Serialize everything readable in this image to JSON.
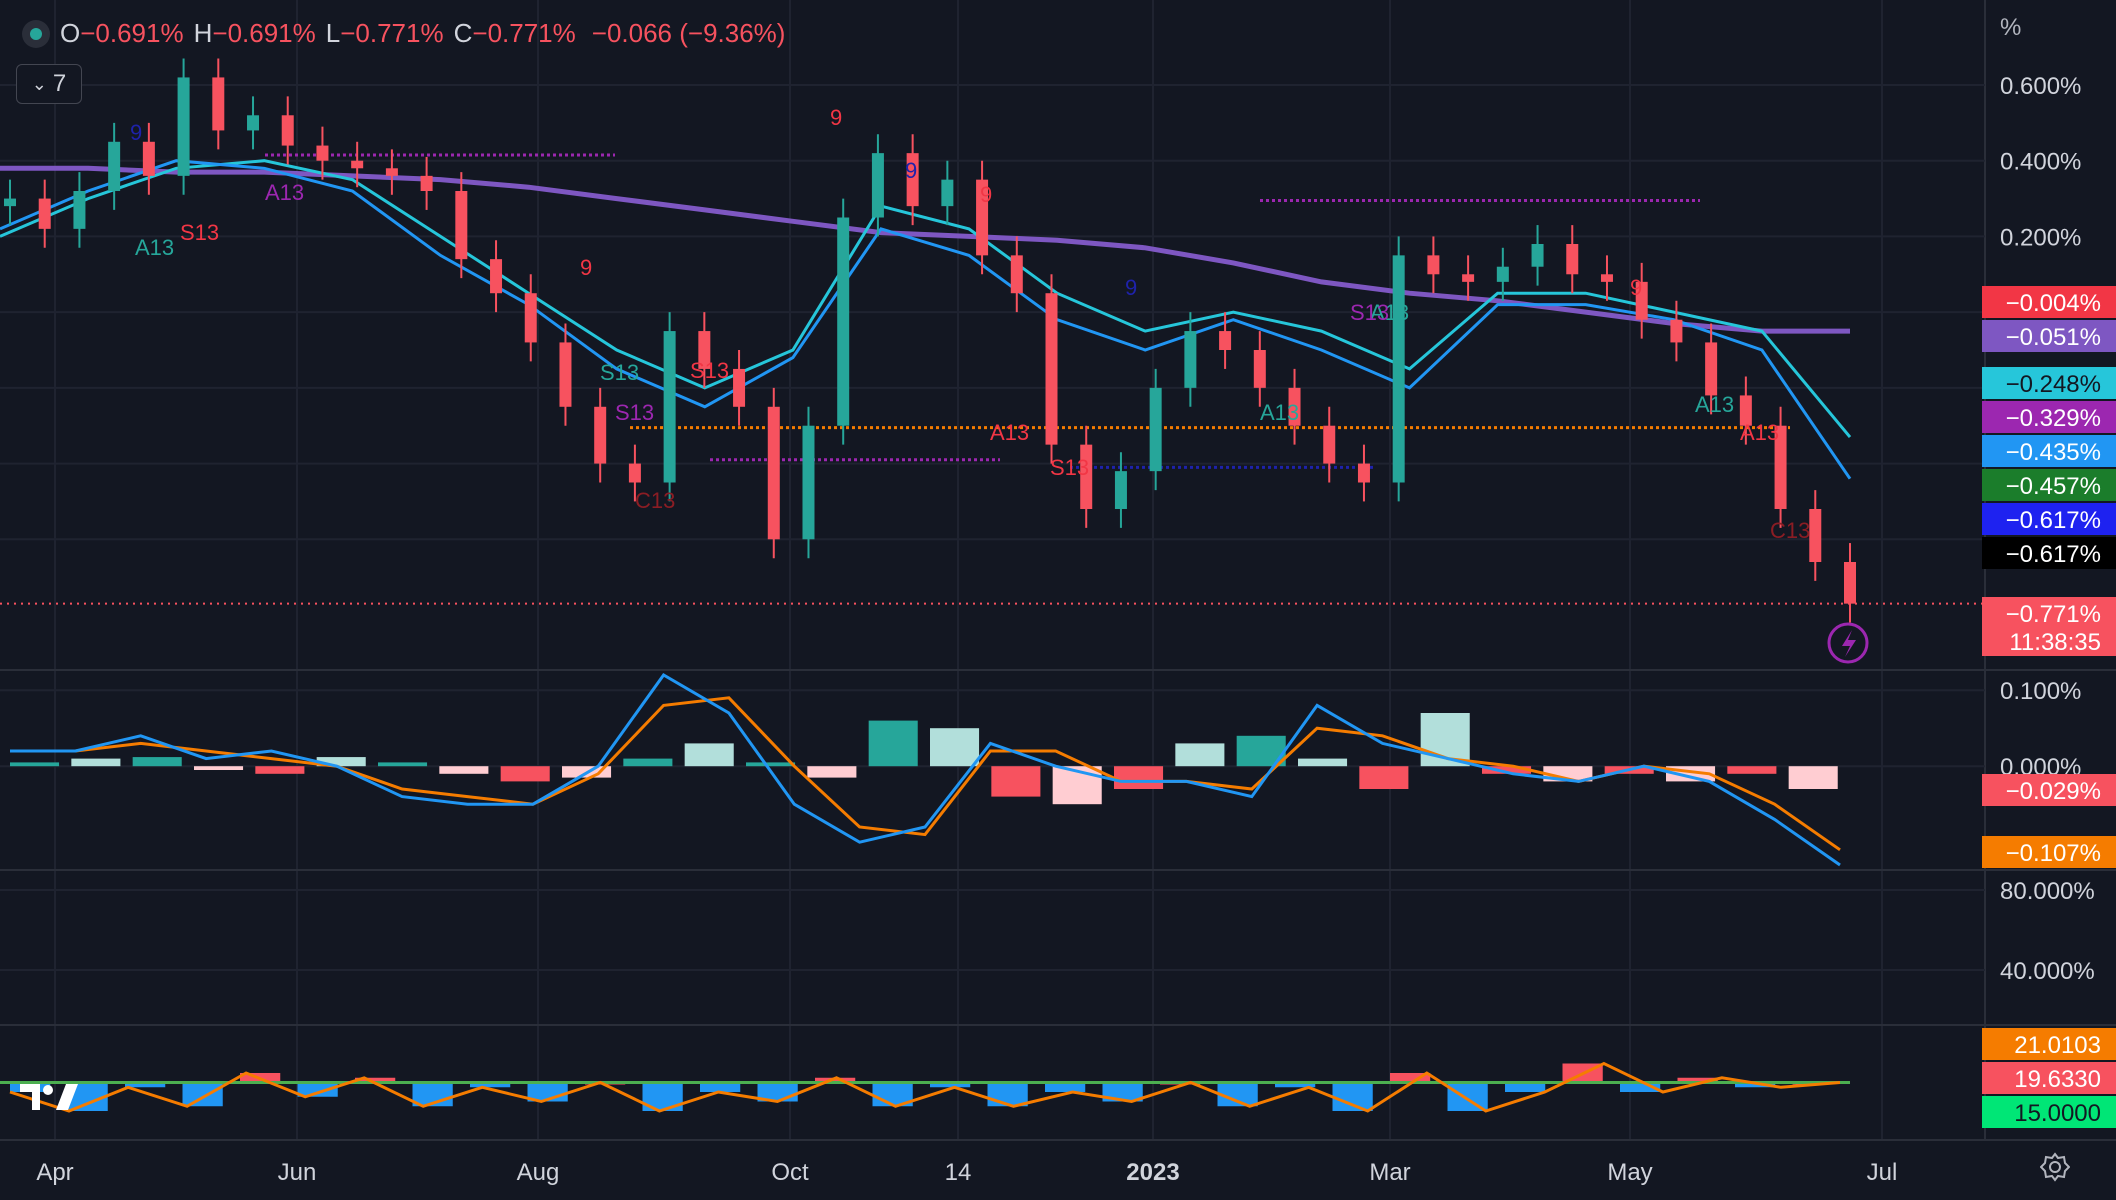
{
  "legend": {
    "o_label": "O",
    "o": "−0.691%",
    "h_label": "H",
    "h": "−0.691%",
    "l_label": "L",
    "l": "−0.771%",
    "c_label": "C",
    "c": "−0.771%",
    "change": "−0.066 (−9.36%)"
  },
  "collapse_count": "7",
  "unit_label": "%",
  "colors": {
    "up": "#26a69a",
    "down": "#f7525f",
    "background": "#131722",
    "grid": "#1f2330"
  },
  "chart_data": {
    "type": "line",
    "x_tick_labels": [
      "Apr",
      "Jun",
      "Aug",
      "Oct",
      "14",
      "2023",
      "Mar",
      "May",
      "Jul"
    ],
    "price_axis_ticks": [
      "0.600%",
      "0.400%",
      "0.200%"
    ],
    "price_ylim": [
      -0.8,
      0.6
    ],
    "price_close": [
      0.3,
      0.22,
      0.32,
      0.45,
      0.36,
      0.62,
      0.48,
      0.52,
      0.44,
      0.4,
      0.38,
      0.36,
      0.32,
      0.14,
      0.05,
      -0.08,
      -0.25,
      -0.4,
      -0.45,
      -0.05,
      -0.15,
      -0.25,
      -0.6,
      -0.3,
      0.25,
      0.42,
      0.28,
      0.35,
      0.15,
      0.05,
      -0.35,
      -0.52,
      -0.42,
      -0.2,
      -0.05,
      -0.1,
      -0.2,
      -0.3,
      -0.4,
      -0.45,
      0.15,
      0.1,
      0.08,
      0.12,
      0.18,
      0.1,
      0.08,
      -0.02,
      -0.08,
      -0.22,
      -0.3,
      -0.52,
      -0.66,
      -0.77
    ],
    "moving_averages": [
      {
        "color": "#7e57c2",
        "values": [
          0.38,
          0.38,
          0.37,
          0.37,
          0.36,
          0.35,
          0.33,
          0.3,
          0.27,
          0.24,
          0.21,
          0.2,
          0.19,
          0.17,
          0.13,
          0.08,
          0.05,
          0.03,
          0.0,
          -0.03,
          -0.05,
          -0.05
        ]
      },
      {
        "color": "#26c6da",
        "values": [
          0.2,
          0.3,
          0.38,
          0.4,
          0.35,
          0.2,
          0.05,
          -0.1,
          -0.2,
          -0.1,
          0.28,
          0.22,
          0.05,
          -0.05,
          0.0,
          -0.05,
          -0.15,
          0.05,
          0.05,
          0.0,
          -0.05,
          -0.33
        ]
      },
      {
        "color": "#2196f3",
        "values": [
          0.22,
          0.32,
          0.4,
          0.38,
          0.32,
          0.15,
          0.02,
          -0.15,
          -0.25,
          -0.12,
          0.22,
          0.15,
          -0.02,
          -0.1,
          -0.02,
          -0.1,
          -0.2,
          0.02,
          0.02,
          -0.02,
          -0.1,
          -0.44
        ]
      }
    ],
    "horizontal_levels": [
      {
        "value": -0.305,
        "color": "#f57c00"
      },
      {
        "value": 0.415,
        "color": "#9c27b0"
      },
      {
        "value": 0.295,
        "color": "#9c27b0"
      },
      {
        "value": -0.39,
        "color": "#9c27b0"
      },
      {
        "value": -0.41,
        "color": "#1e22aa"
      }
    ],
    "price_axis_labels": [
      {
        "text": "−0.004%",
        "bg": "#f23645",
        "fg": "#ffffff"
      },
      {
        "text": "−0.051%",
        "bg": "#7e57c2",
        "fg": "#ffffff"
      },
      {
        "text": "−0.248%",
        "bg": "#26c6da",
        "fg": "#131722"
      },
      {
        "text": "−0.329%",
        "bg": "#9c27b0",
        "fg": "#ffffff"
      },
      {
        "text": "−0.435%",
        "bg": "#2196f3",
        "fg": "#ffffff"
      },
      {
        "text": "−0.457%",
        "bg": "#1b7d2b",
        "fg": "#ffffff"
      },
      {
        "text": "−0.617%",
        "bg": "#1e22f0",
        "fg": "#ffffff"
      },
      {
        "text": "−0.617%",
        "bg": "#000000",
        "fg": "#ffffff"
      },
      {
        "text": "−0.771%",
        "bg": "#f7525f",
        "fg": "#ffffff"
      }
    ],
    "countdown": "11:38:35",
    "annotations": [
      "A13",
      "S13",
      "A13",
      "S13",
      "A13",
      "S13",
      "A13",
      "S13",
      "C13",
      "A13",
      "A13",
      "S13",
      "A13",
      "S13",
      "C13",
      "9",
      "9",
      "9",
      "9",
      "9",
      "9",
      "9"
    ],
    "macd": {
      "axis_ticks": [
        "0.100%",
        "0.000%"
      ],
      "ylim": [
        -0.13,
        0.12
      ],
      "hist": [
        0.005,
        0.01,
        0.012,
        -0.005,
        -0.01,
        0.012,
        0.005,
        -0.01,
        -0.02,
        -0.015,
        0.01,
        0.03,
        0.005,
        -0.015,
        0.06,
        0.05,
        -0.04,
        -0.05,
        -0.03,
        0.03,
        0.04,
        0.01,
        -0.03,
        0.07,
        -0.01,
        -0.02,
        -0.01,
        -0.02,
        -0.01,
        -0.03
      ],
      "line": [
        0.02,
        0.02,
        0.04,
        0.01,
        0.02,
        0.0,
        -0.04,
        -0.05,
        -0.05,
        0.0,
        0.12,
        0.07,
        -0.05,
        -0.1,
        -0.08,
        0.03,
        0.0,
        -0.02,
        -0.02,
        -0.04,
        0.08,
        0.03,
        0.01,
        -0.01,
        -0.02,
        0.0,
        -0.02,
        -0.07,
        -0.13
      ],
      "signal": [
        0.02,
        0.02,
        0.03,
        0.02,
        0.01,
        0.0,
        -0.03,
        -0.04,
        -0.05,
        -0.01,
        0.08,
        0.09,
        0.0,
        -0.08,
        -0.09,
        0.02,
        0.02,
        -0.02,
        -0.02,
        -0.03,
        0.05,
        0.04,
        0.01,
        0.0,
        -0.02,
        0.0,
        -0.01,
        -0.05,
        -0.11
      ],
      "labels": [
        {
          "text": "−0.029%",
          "bg": "#f7525f"
        },
        {
          "text": "−0.107%",
          "bg": "#f57c00"
        }
      ]
    },
    "oscillator": {
      "axis_ticks": [
        "80.000%",
        "40.000%"
      ]
    },
    "adx": {
      "threshold": 20,
      "line": [
        18,
        14,
        19,
        15,
        22,
        17,
        21,
        15,
        19,
        16,
        20,
        14,
        18,
        16,
        21,
        15,
        19,
        15,
        18,
        16,
        20,
        15,
        19,
        14,
        22,
        14,
        18,
        24,
        18,
        21,
        19,
        20
      ],
      "labels": [
        {
          "text": "21.0103",
          "bg": "#f57c00"
        },
        {
          "text": "19.6330",
          "bg": "#f7525f"
        },
        {
          "text": "15.0000",
          "bg": "#00e676"
        }
      ]
    }
  }
}
